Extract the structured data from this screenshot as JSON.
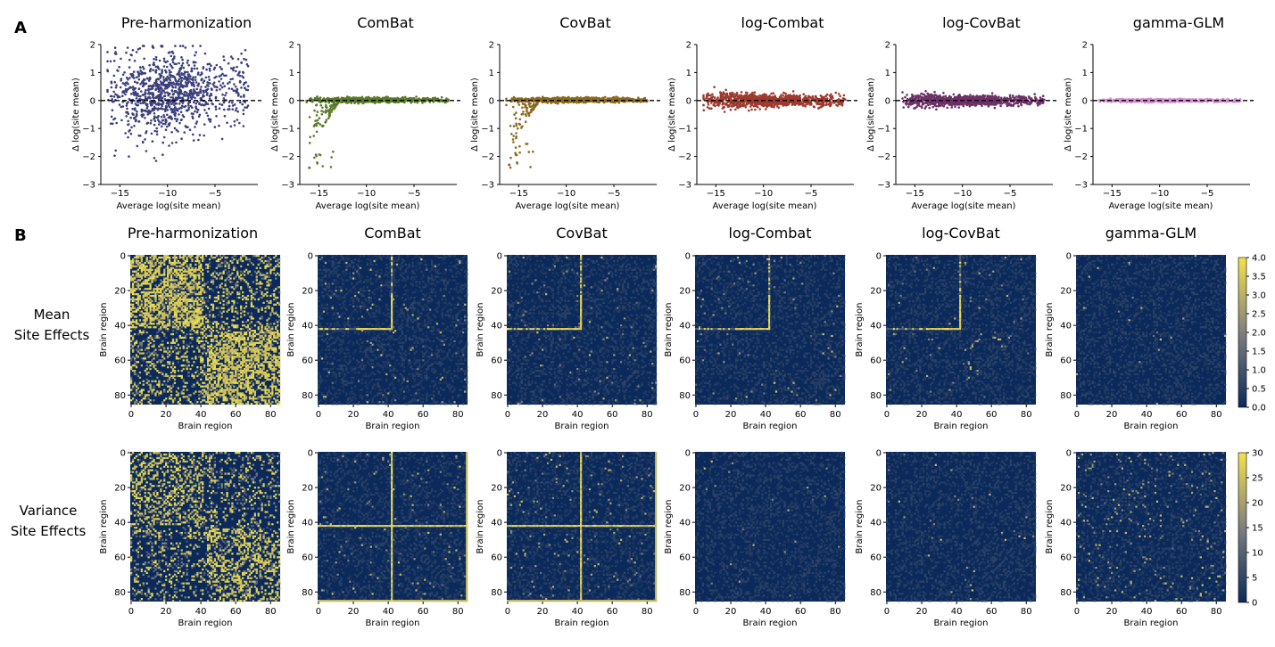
{
  "panel_labels": {
    "a": "A",
    "b": "B"
  },
  "methods": [
    "Pre-harmonization",
    "ComBat",
    "CovBat",
    "log-Combat",
    "log-CovBat",
    "gamma-GLM"
  ],
  "row_labels": {
    "mean": [
      "Mean",
      "Site Effects"
    ],
    "variance": [
      "Variance",
      "Site Effects"
    ]
  },
  "colors": {
    "scatter": [
      "#3c3f7c",
      "#5a7a2a",
      "#8b6a1e",
      "#9e3a2e",
      "#6e3068",
      "#d58fd0"
    ],
    "heat_low": "#0b2a5b",
    "heat_mid": "#7f7f7f",
    "heat_high": "#f5e14a"
  },
  "chart_data": [
    {
      "type": "scatter",
      "title": "Pre-harmonization",
      "xlabel": "Average log(site mean)",
      "ylabel": "Δ log(site mean)",
      "xticks": [
        -15,
        -10,
        -5
      ],
      "yticks": [
        2,
        1,
        0,
        -1,
        -2,
        -3
      ],
      "xlim": [
        -17,
        -0.5
      ],
      "ylim": [
        -3,
        2
      ],
      "reference_line": 0,
      "approx_points": 1200,
      "approx_x_range": [
        -16,
        -1.5
      ],
      "approx_y_spread": [
        -3,
        2
      ]
    },
    {
      "type": "scatter",
      "title": "ComBat",
      "xlabel": "Average log(site mean)",
      "ylabel": "Δ log(site mean)",
      "xticks": [
        -15,
        -10,
        -5
      ],
      "yticks": [
        2,
        1,
        0,
        -1,
        -2,
        -3
      ],
      "xlim": [
        -17,
        -0.5
      ],
      "ylim": [
        -3,
        2
      ],
      "reference_line": 0,
      "approx_points": 1200,
      "approx_y_spread": [
        -2.4,
        0.2
      ]
    },
    {
      "type": "scatter",
      "title": "CovBat",
      "xlabel": "Average log(site mean)",
      "ylabel": "Δ log(site mean)",
      "xticks": [
        -15,
        -10,
        -5
      ],
      "yticks": [
        2,
        1,
        0,
        -1,
        -2,
        -3
      ],
      "xlim": [
        -17,
        -0.5
      ],
      "ylim": [
        -3,
        2
      ],
      "reference_line": 0,
      "approx_points": 1200,
      "approx_y_spread": [
        -2.3,
        0.2
      ]
    },
    {
      "type": "scatter",
      "title": "log-Combat",
      "xlabel": "Average log(site mean)",
      "ylabel": "Δ log(site mean)",
      "xticks": [
        -15,
        -10,
        -5
      ],
      "yticks": [
        2,
        1,
        0,
        -1,
        -2,
        -3
      ],
      "xlim": [
        -17,
        -0.5
      ],
      "ylim": [
        -3,
        2
      ],
      "reference_line": 0,
      "approx_points": 1200,
      "approx_y_spread": [
        -0.4,
        0.3
      ]
    },
    {
      "type": "scatter",
      "title": "log-CovBat",
      "xlabel": "Average log(site mean)",
      "ylabel": "Δ log(site mean)",
      "xticks": [
        -15,
        -10,
        -5
      ],
      "yticks": [
        2,
        1,
        0,
        -1,
        -2,
        -3
      ],
      "xlim": [
        -17,
        -0.5
      ],
      "ylim": [
        -3,
        2
      ],
      "reference_line": 0,
      "approx_points": 1200,
      "approx_y_spread": [
        -0.3,
        0.3
      ]
    },
    {
      "type": "scatter",
      "title": "gamma-GLM",
      "xlabel": "Average log(site mean)",
      "ylabel": "Δ log(site mean)",
      "xticks": [
        -15,
        -10,
        -5
      ],
      "yticks": [
        2,
        1,
        0,
        -1,
        -2,
        -3
      ],
      "xlim": [
        -17,
        -0.5
      ],
      "ylim": [
        -3,
        2
      ],
      "reference_line": 0,
      "approx_points": 1200,
      "approx_y_spread": [
        -0.1,
        0.1
      ]
    },
    {
      "type": "heatmap",
      "row": "Mean Site Effects",
      "titles": [
        "Pre-harmonization",
        "ComBat",
        "CovBat",
        "log-Combat",
        "log-CovBat",
        "gamma-GLM"
      ],
      "xlabel": "Brain region",
      "ylabel": "Brain region",
      "n_regions": 86,
      "ticks": [
        0,
        20,
        40,
        60,
        80
      ],
      "colorbar_range": [
        0.0,
        4.0
      ],
      "colorbar_ticks": [
        "4.0",
        "3.5",
        "3.0",
        "2.5",
        "2.0",
        "1.5",
        "1.0",
        "0.5",
        "0.0"
      ],
      "approx_high_fraction": [
        0.32,
        0.02,
        0.015,
        0.012,
        0.008,
        0.002
      ],
      "bright_line_at_region": [
        null,
        42,
        42,
        42,
        42,
        null
      ]
    },
    {
      "type": "heatmap",
      "row": "Variance Site Effects",
      "titles": [
        "Pre-harmonization",
        "ComBat",
        "CovBat",
        "log-Combat",
        "log-CovBat",
        "gamma-GLM"
      ],
      "xlabel": "Brain region",
      "ylabel": "Brain region",
      "n_regions": 86,
      "ticks": [
        0,
        20,
        40,
        60,
        80
      ],
      "colorbar_range": [
        0,
        30
      ],
      "colorbar_ticks": [
        "30",
        "25",
        "20",
        "15",
        "10",
        "5",
        "0"
      ],
      "approx_high_fraction": [
        0.18,
        0.02,
        0.02,
        0.004,
        0.004,
        0.03
      ],
      "bright_line_at_region": [
        null,
        42,
        42,
        null,
        null,
        null
      ]
    }
  ]
}
